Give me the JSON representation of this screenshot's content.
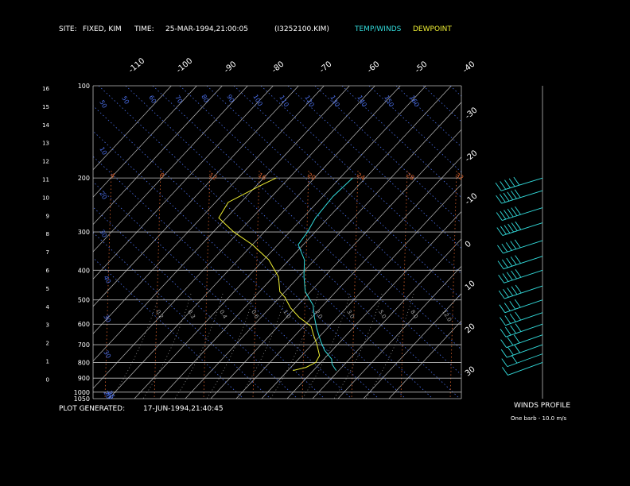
{
  "header": {
    "site_label": "SITE:",
    "site_value": "FIXED, KIM",
    "time_label": "TIME:",
    "time_value": "25-MAR-1994,21:00:05",
    "file": "(I3252100.KIM)",
    "temp_legend": "TEMP/WINDS",
    "dew_legend": "DEWPOINT"
  },
  "footer": {
    "generated_label": "PLOT GENERATED:",
    "generated_value": "17-JUN-1994,21:40:45",
    "winds_title": "WINDS PROFILE",
    "barb_note": "One barb - 10.0 m/s"
  },
  "colors": {
    "temp": "#33dddd",
    "dewpoint": "#eeee33",
    "isobar": "#bbbbbb",
    "isotherm": "#bbbbbb",
    "dry_adiabat": "#4a6ee8",
    "mixing_ratio": "#d8602a",
    "moist_adiabat": "#aaaaaa",
    "winds": "#33dddd"
  },
  "chart_data": {
    "type": "line",
    "title": "",
    "xlabel": "",
    "ylabel": "",
    "isobars_hPa": [
      100,
      200,
      300,
      400,
      500,
      600,
      700,
      800,
      900,
      1000,
      1050
    ],
    "height_ticks_km": [
      "16",
      "15",
      "14",
      "13",
      "12",
      "11",
      "10",
      "9",
      "8",
      "7",
      "6",
      "5",
      "4",
      "3",
      "2",
      "1",
      "0"
    ],
    "isotherm_labels_top_C": [
      "-110",
      "-100",
      "-90",
      "-80",
      "-70",
      "-60",
      "-50",
      "-40"
    ],
    "isotherm_labels_right_C": [
      "-30",
      "-20",
      "-10",
      "0",
      "10",
      "20",
      "30"
    ],
    "dry_adiabat_labels": [
      "50",
      "50",
      "60",
      "70",
      "80",
      "90",
      "100",
      "110",
      "120",
      "130",
      "140",
      "150",
      "160",
      "10",
      "20",
      "30",
      "40",
      "30",
      "30",
      "20",
      "30",
      "25"
    ],
    "mixing_ratio_labels": [
      "4",
      "8",
      "12",
      "16",
      "20",
      "24",
      "28",
      "32"
    ],
    "moist_adiabat_labels": [
      "0.2",
      "0.3",
      "0.4",
      "0.6",
      "1.0",
      "2.0",
      "3.0",
      "5.0",
      "8.0",
      "12.0"
    ],
    "temperature_profile": [
      {
        "p": 200,
        "t": -55
      },
      {
        "p": 230,
        "t": -56
      },
      {
        "p": 270,
        "t": -55
      },
      {
        "p": 300,
        "t": -53
      },
      {
        "p": 330,
        "t": -52
      },
      {
        "p": 370,
        "t": -44
      },
      {
        "p": 420,
        "t": -38
      },
      {
        "p": 470,
        "t": -32
      },
      {
        "p": 520,
        "t": -24
      },
      {
        "p": 570,
        "t": -19
      },
      {
        "p": 620,
        "t": -14
      },
      {
        "p": 680,
        "t": -8
      },
      {
        "p": 730,
        "t": -3
      },
      {
        "p": 780,
        "t": 3
      },
      {
        "p": 810,
        "t": 5
      },
      {
        "p": 830,
        "t": 7
      },
      {
        "p": 850,
        "t": 9
      }
    ],
    "dewpoint_profile": [
      {
        "p": 200,
        "t": -85
      },
      {
        "p": 210,
        "t": -88
      },
      {
        "p": 240,
        "t": -95
      },
      {
        "p": 270,
        "t": -93
      },
      {
        "p": 300,
        "t": -82
      },
      {
        "p": 330,
        "t": -70
      },
      {
        "p": 370,
        "t": -58
      },
      {
        "p": 420,
        "t": -48
      },
      {
        "p": 470,
        "t": -42
      },
      {
        "p": 490,
        "t": -38
      },
      {
        "p": 530,
        "t": -32
      },
      {
        "p": 570,
        "t": -25
      },
      {
        "p": 610,
        "t": -17
      },
      {
        "p": 650,
        "t": -13
      },
      {
        "p": 700,
        "t": -8
      },
      {
        "p": 760,
        "t": -3
      },
      {
        "p": 800,
        "t": -2
      },
      {
        "p": 830,
        "t": -4
      },
      {
        "p": 850,
        "t": -8
      }
    ],
    "wind_barbs": [
      {
        "p": 200,
        "barbs": 5
      },
      {
        "p": 220,
        "barbs": 6
      },
      {
        "p": 250,
        "barbs": 6
      },
      {
        "p": 280,
        "barbs": 6
      },
      {
        "p": 320,
        "barbs": 5
      },
      {
        "p": 360,
        "barbs": 5
      },
      {
        "p": 400,
        "barbs": 5
      },
      {
        "p": 450,
        "barbs": 5
      },
      {
        "p": 500,
        "barbs": 4
      },
      {
        "p": 550,
        "barbs": 4
      },
      {
        "p": 600,
        "barbs": 4
      },
      {
        "p": 650,
        "barbs": 3
      },
      {
        "p": 700,
        "barbs": 3
      },
      {
        "p": 750,
        "barbs": 2
      },
      {
        "p": 800,
        "barbs": 1
      }
    ]
  }
}
